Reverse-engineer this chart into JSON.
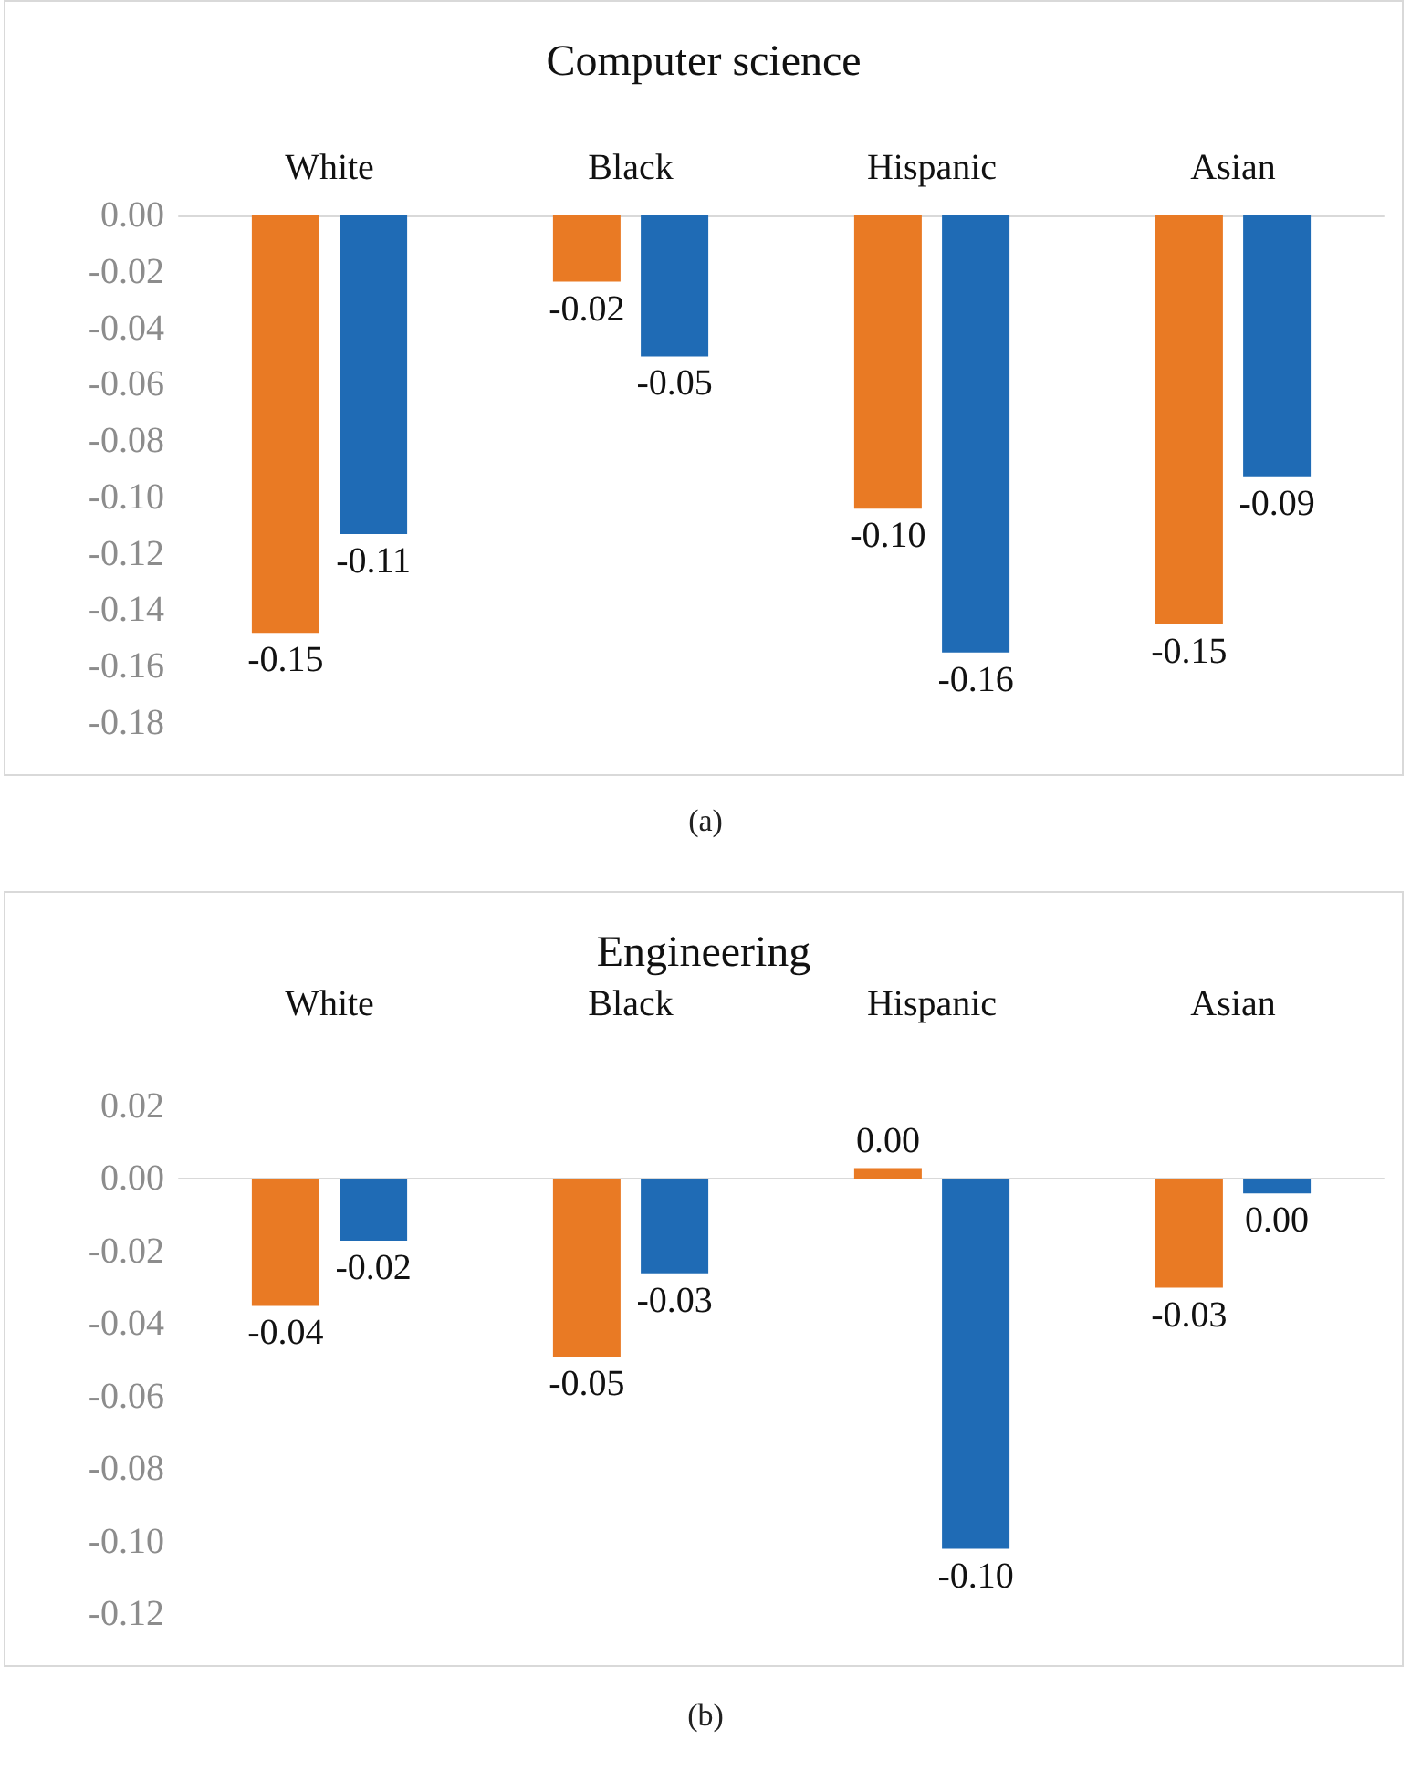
{
  "chart_data": [
    {
      "type": "bar",
      "title": "Computer science",
      "categories": [
        "White",
        "Black",
        "Hispanic",
        "Asian"
      ],
      "series": [
        {
          "color": "#e97a24",
          "values": [
            -0.148,
            -0.0235,
            -0.104,
            -0.145
          ],
          "value_labels": [
            "-0.15",
            "-0.02",
            "-0.10",
            "-0.15"
          ]
        },
        {
          "color": "#1f6bb5",
          "values": [
            -0.113,
            -0.05,
            -0.155,
            -0.0925
          ],
          "value_labels": [
            "-0.11",
            "-0.05",
            "-0.16",
            "-0.09"
          ]
        }
      ],
      "ylim": [
        -0.18,
        0
      ],
      "yticks": [
        {
          "value": 0,
          "label": "0.00"
        },
        {
          "value": -0.02,
          "label": "-0.02"
        },
        {
          "value": -0.04,
          "label": "-0.04"
        },
        {
          "value": -0.06,
          "label": "-0.06"
        },
        {
          "value": -0.08,
          "label": "-0.08"
        },
        {
          "value": -0.1,
          "label": "-0.10"
        },
        {
          "value": -0.12,
          "label": "-0.12"
        },
        {
          "value": -0.14,
          "label": "-0.14"
        },
        {
          "value": -0.16,
          "label": "-0.16"
        },
        {
          "value": -0.18,
          "label": "-0.18"
        }
      ],
      "annotations": [
        "(a)"
      ]
    },
    {
      "type": "bar",
      "title": "Engineering",
      "categories": [
        "White",
        "Black",
        "Hispanic",
        "Asian"
      ],
      "series": [
        {
          "color": "#e97a24",
          "values": [
            -0.035,
            -0.049,
            0.003,
            -0.03
          ],
          "value_labels": [
            "-0.04",
            "-0.05",
            "0.00",
            "-0.03"
          ]
        },
        {
          "color": "#1f6bb5",
          "values": [
            -0.017,
            -0.026,
            -0.102,
            -0.004
          ],
          "value_labels": [
            "-0.02",
            "-0.03",
            "-0.10",
            "0.00"
          ]
        }
      ],
      "ylim": [
        -0.12,
        0.02
      ],
      "yticks": [
        {
          "value": 0.02,
          "label": "0.02"
        },
        {
          "value": 0,
          "label": "0.00"
        },
        {
          "value": -0.02,
          "label": "-0.02"
        },
        {
          "value": -0.04,
          "label": "-0.04"
        },
        {
          "value": -0.06,
          "label": "-0.06"
        },
        {
          "value": -0.08,
          "label": "-0.08"
        },
        {
          "value": -0.1,
          "label": "-0.10"
        },
        {
          "value": -0.12,
          "label": "-0.12"
        }
      ],
      "annotations": [
        "(b)"
      ]
    }
  ]
}
